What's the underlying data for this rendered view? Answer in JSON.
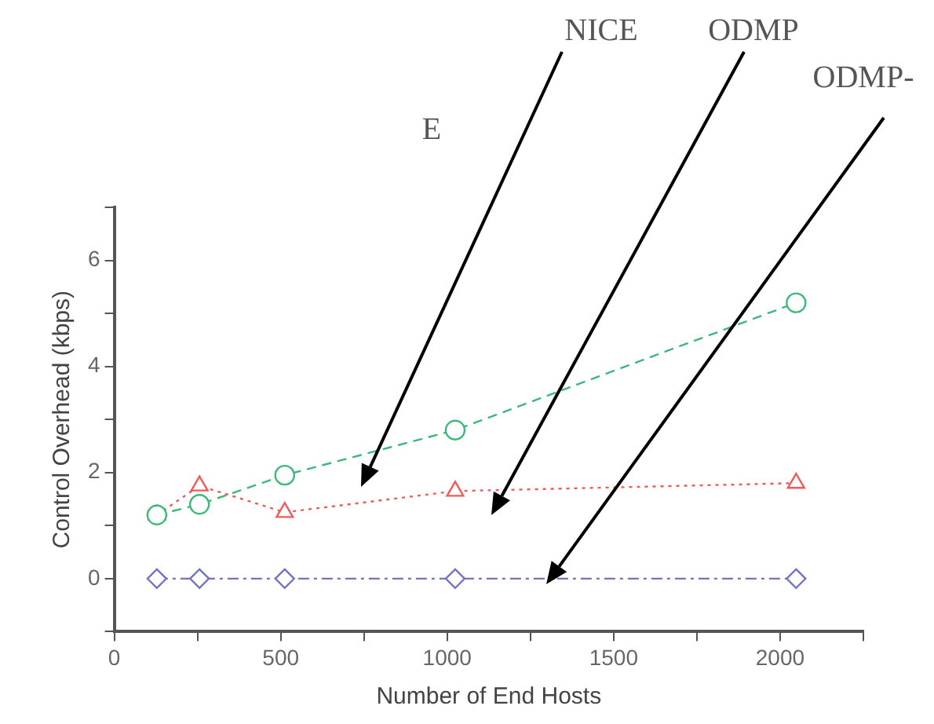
{
  "chart_data": {
    "type": "line",
    "xlabel": "Number of End Hosts",
    "ylabel": "Control Overhead (kbps)",
    "x": [
      128,
      256,
      512,
      1024,
      2048
    ],
    "xlim": [
      0,
      2250
    ],
    "xticks": [
      0,
      {
        "value": 250,
        "label": null
      },
      500,
      {
        "value": 750,
        "label": null
      },
      1000,
      {
        "value": 1250,
        "label": null
      },
      1500,
      {
        "value": 1750,
        "label": null
      },
      2000,
      {
        "value": 2250,
        "label": null
      }
    ],
    "ylim": [
      -1,
      7
    ],
    "yticks": [
      {
        "value": -1,
        "label": null
      },
      0,
      {
        "value": 1,
        "label": null
      },
      2,
      {
        "value": 3,
        "label": null
      },
      4,
      {
        "value": 5,
        "label": null
      },
      6,
      {
        "value": 7,
        "label": null
      }
    ],
    "grid": false,
    "legend": false,
    "series": [
      {
        "color": "#3cb878",
        "values": [
          1.2,
          1.4,
          1.95,
          2.8,
          5.2
        ],
        "marker": "circle",
        "line_style": "dashed"
      },
      {
        "color": "#f05a5a",
        "values": [
          1.2,
          1.75,
          1.25,
          1.65,
          1.8
        ],
        "marker": "triangle",
        "line_style": "dotted"
      },
      {
        "color": "#7373c4",
        "values": [
          0,
          0,
          0,
          0,
          0
        ],
        "marker": "diamond",
        "line_style": "dashdot"
      }
    ],
    "annotations": [
      "NICE",
      "ODMP",
      "ODMP-",
      "E"
    ]
  }
}
